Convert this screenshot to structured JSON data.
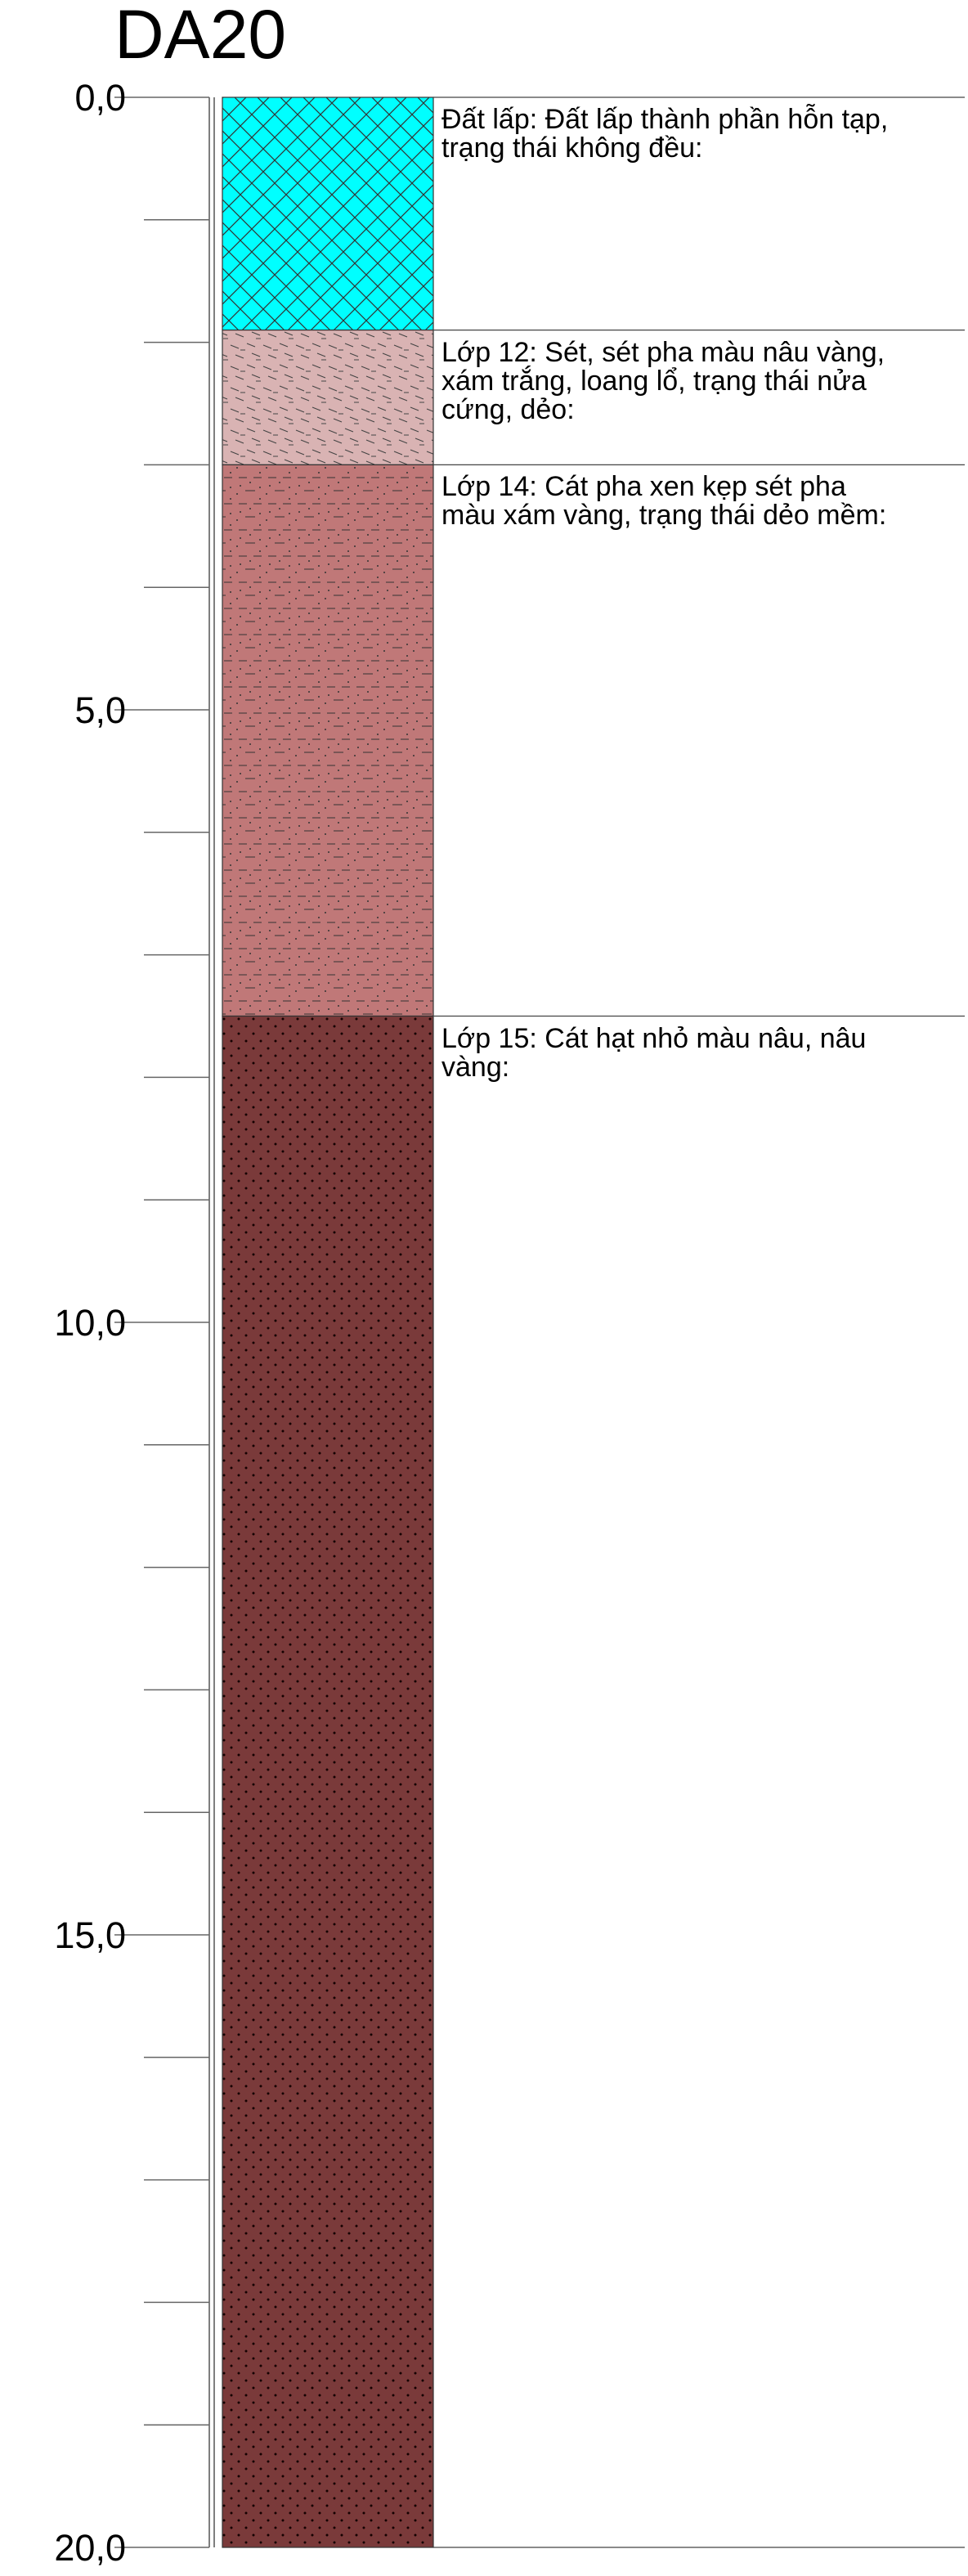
{
  "title": "DA20",
  "depth_axis": {
    "min": 0,
    "max": 20,
    "major_step": 5,
    "minor_step": 1,
    "labels": [
      "0,0",
      "5,0",
      "10,0",
      "15,0",
      "20,0"
    ]
  },
  "layers": [
    {
      "name": "Đất lấp",
      "top": 0,
      "bottom": 1.9,
      "pattern": "crosshatch",
      "fill": "#00ffff",
      "mark": "#333333",
      "description": "Đất lấp: Đất lấp thành phần hỗn tạp,\ntrạng thái không đều:"
    },
    {
      "name": "Lớp 12",
      "top": 1.9,
      "bottom": 3.0,
      "pattern": "clay",
      "fill": "#d9b3b3",
      "mark": "#333333",
      "description": "Lớp 12: Sét, sét pha màu nâu vàng,\nxám trắng, loang lổ, trạng thái nửa\ncứng, dẻo:"
    },
    {
      "name": "Lớp 14",
      "top": 3.0,
      "bottom": 7.5,
      "pattern": "sandy-clay",
      "fill": "#c07878",
      "mark": "#333333",
      "description": "Lớp 14: Cát pha xen kẹp sét pha\nmàu xám vàng, trạng thái dẻo mềm:"
    },
    {
      "name": "Lớp 15",
      "top": 7.5,
      "bottom": 20.0,
      "pattern": "sand",
      "fill": "#7a3a3a",
      "mark": "#1a0000",
      "description": "Lớp 15: Cát hạt nhỏ màu nâu, nâu\nvàng:"
    }
  ]
}
